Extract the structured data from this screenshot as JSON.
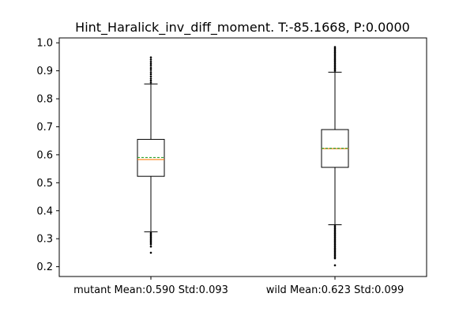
{
  "chart_data": {
    "type": "box",
    "title": "Hint_Haralick_inv_diff_moment. T:-85.1668, P:0.0000",
    "xlabel": "",
    "ylabel": "",
    "categories": [
      "mutant Mean:0.590 Std:0.093",
      "wild Mean:0.623 Std:0.099"
    ],
    "ylim": [
      0.165,
      1.0175
    ],
    "yticks": [
      0.2,
      0.3,
      0.4,
      0.5,
      0.6,
      0.7,
      0.8,
      0.9,
      1.0
    ],
    "ytick_labels": [
      "0.2",
      "0.3",
      "0.4",
      "0.5",
      "0.6",
      "0.7",
      "0.8",
      "0.9",
      "1.0"
    ],
    "boxes": [
      {
        "category": "mutant Mean:0.590 Std:0.093",
        "whisker_low": 0.325,
        "q1": 0.523,
        "median": 0.583,
        "mean": 0.59,
        "q3": 0.655,
        "whisker_high": 0.853,
        "fliers_low": [
          0.32,
          0.315,
          0.31,
          0.305,
          0.3,
          0.295,
          0.29,
          0.285,
          0.28,
          0.272,
          0.25
        ],
        "fliers_high": [
          0.858,
          0.865,
          0.872,
          0.88,
          0.888,
          0.895,
          0.903,
          0.91,
          0.918,
          0.925,
          0.932,
          0.94,
          0.948
        ]
      },
      {
        "category": "wild Mean:0.623 Std:0.099",
        "whisker_low": 0.35,
        "q1": 0.555,
        "median": 0.622,
        "mean": 0.623,
        "q3": 0.69,
        "whisker_high": 0.895,
        "fliers_low": [
          0.345,
          0.34,
          0.335,
          0.33,
          0.325,
          0.32,
          0.315,
          0.31,
          0.305,
          0.3,
          0.295,
          0.29,
          0.285,
          0.28,
          0.275,
          0.27,
          0.265,
          0.26,
          0.255,
          0.25,
          0.245,
          0.24,
          0.235,
          0.23,
          0.205
        ],
        "fliers_high": [
          0.9,
          0.905,
          0.91,
          0.915,
          0.92,
          0.925,
          0.93,
          0.935,
          0.94,
          0.945,
          0.95,
          0.955,
          0.96,
          0.965,
          0.97,
          0.975,
          0.98,
          0.985
        ]
      }
    ],
    "colors": {
      "median": "#ff7f0e",
      "mean": "#2ca02c",
      "box": "#000000"
    }
  }
}
